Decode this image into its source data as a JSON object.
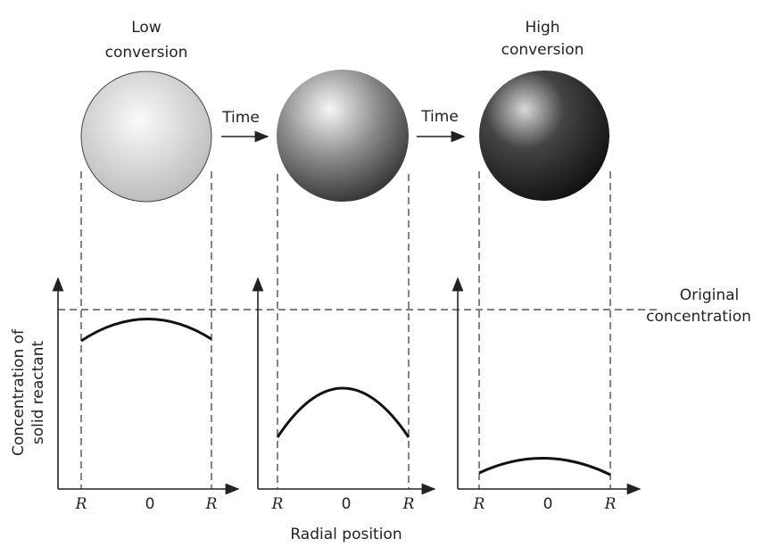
{
  "top_labels": [
    [
      "Low",
      "conversion"
    ],
    [
      "High",
      "conversion"
    ]
  ],
  "arrow_labels": [
    "Time",
    "Time"
  ],
  "reference_label": [
    "Original",
    "concentration"
  ],
  "y_axis_label": [
    "Concentration of",
    "solid reactant"
  ],
  "x_axis_label": "Radial position",
  "panels": [
    {
      "ticks": [
        "R",
        "0",
        "R"
      ]
    },
    {
      "ticks": [
        "R",
        "0",
        "R"
      ]
    },
    {
      "ticks": [
        "R",
        "0",
        "R"
      ]
    }
  ]
}
